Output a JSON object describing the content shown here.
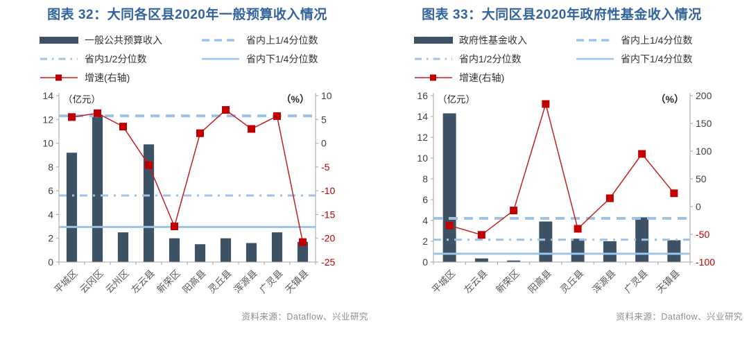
{
  "colors": {
    "bar": "#3e5266",
    "quartile_line": "#9dc3e6",
    "growth_line": "#bf1f1f",
    "growth_marker": "#c00000",
    "title": "#33639c",
    "axis_line": "#a6a6a6",
    "tick_label": "#404040",
    "tick_label_negative": "#c00000",
    "x_label": "#595959",
    "unit_label": "#262626",
    "legend_text": "#333333",
    "source_text": "#8c8c8c"
  },
  "chart_data": [
    {
      "type": "bar+line",
      "title": "图表 32：大同各区县2020年一般预算收入情况",
      "unit_left": "（亿元）",
      "unit_right": "（%）",
      "legend": [
        {
          "label": "一般公共预算收入",
          "swatch": "bar"
        },
        {
          "label": "省内上1/4分位数",
          "swatch": "dashed"
        },
        {
          "label": "省内1/2分位数",
          "swatch": "dashdot"
        },
        {
          "label": "省内下1/4分位数",
          "swatch": "solid"
        },
        {
          "label": "增速(右轴)",
          "swatch": "line-marker"
        }
      ],
      "legend_position": "top",
      "grid": false,
      "categories": [
        "平城区",
        "云冈区",
        "云州区",
        "左云县",
        "新荣区",
        "阳高县",
        "灵丘县",
        "浑源县",
        "广灵县",
        "天镇县"
      ],
      "series": [
        {
          "name": "一般公共预算收入",
          "type": "bar",
          "axis": "left",
          "values": [
            9.2,
            12.4,
            2.5,
            9.9,
            2.0,
            1.5,
            2.0,
            1.6,
            2.5,
            1.7
          ]
        },
        {
          "name": "增速(右轴)",
          "type": "line",
          "axis": "right",
          "values": [
            5.5,
            6.3,
            3.5,
            -4.6,
            -17.5,
            2.1,
            7.0,
            3.0,
            5.7,
            -20.8
          ]
        },
        {
          "name": "省内上1/4分位数",
          "type": "hline",
          "axis": "left",
          "value": 12.3
        },
        {
          "name": "省内1/2分位数",
          "type": "hline",
          "axis": "left",
          "value": 5.6
        },
        {
          "name": "省内下1/4分位数",
          "type": "hline",
          "axis": "left",
          "value": 2.95
        }
      ],
      "left_axis": {
        "min": 0,
        "max": 14,
        "step": 2
      },
      "right_axis": {
        "min": -25,
        "max": 10,
        "step": 5
      },
      "source": "资料来源：Dataflow、兴业研究"
    },
    {
      "type": "bar+line",
      "title": "图表 33：大同区县2020年政府性基金收入情况",
      "unit_left": "（亿元）",
      "unit_right": "（%）",
      "legend": [
        {
          "label": "政府性基金收入",
          "swatch": "bar"
        },
        {
          "label": "省内上1/4分位数",
          "swatch": "dashed"
        },
        {
          "label": "省内1/2分位数",
          "swatch": "dashdot"
        },
        {
          "label": "省内下1/4分位数",
          "swatch": "solid"
        },
        {
          "label": "增速(右轴)",
          "swatch": "line-marker"
        }
      ],
      "legend_position": "top",
      "grid": false,
      "categories": [
        "平城区",
        "左云县",
        "新荣区",
        "阳高县",
        "灵丘县",
        "浑源县",
        "广灵县",
        "天镇县"
      ],
      "series": [
        {
          "name": "政府性基金收入",
          "type": "bar",
          "axis": "left",
          "values": [
            14.3,
            0.35,
            0.15,
            3.9,
            2.25,
            2.0,
            4.3,
            2.1
          ]
        },
        {
          "name": "增速(右轴)",
          "type": "line",
          "axis": "right",
          "values": [
            -34,
            -51,
            -7,
            185,
            -40,
            15,
            95,
            24
          ]
        },
        {
          "name": "省内上1/4分位数",
          "type": "hline",
          "axis": "left",
          "value": 4.2
        },
        {
          "name": "省内1/2分位数",
          "type": "hline",
          "axis": "left",
          "value": 2.15
        },
        {
          "name": "省内下1/4分位数",
          "type": "hline",
          "axis": "left",
          "value": 0.8
        }
      ],
      "left_axis": {
        "min": 0,
        "max": 16,
        "step": 2
      },
      "right_axis": {
        "min": -100,
        "max": 200,
        "step": 50
      },
      "source": "资料来源：Dataflow、兴业研究"
    }
  ]
}
